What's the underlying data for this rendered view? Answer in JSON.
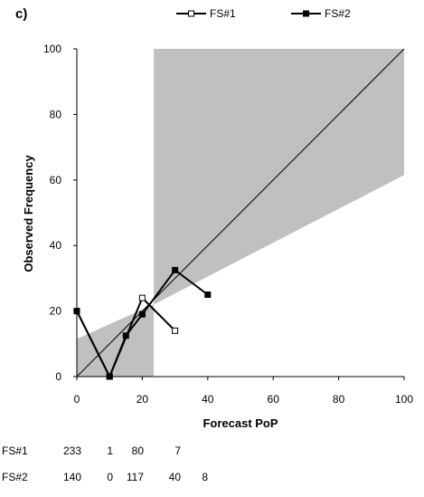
{
  "panel_label": "c)",
  "chart_data": {
    "type": "line",
    "title": "",
    "xlabel": "Forecast PoP",
    "ylabel": "Observed Frequency",
    "xlim": [
      0,
      100
    ],
    "ylim": [
      0,
      100
    ],
    "x_ticks": [
      "0",
      "20",
      "40",
      "60",
      "80",
      "100"
    ],
    "y_ticks": [
      "0",
      "20",
      "40",
      "60",
      "80",
      "100"
    ],
    "grid": false,
    "legend_position": "top",
    "diagonal": {
      "x": [
        0,
        100
      ],
      "y": [
        0,
        100
      ]
    },
    "shaded_region": {
      "x": [
        0,
        10,
        23.5,
        23.5,
        100,
        100,
        23.5,
        23.5,
        0
      ],
      "y": [
        11.5,
        16,
        22,
        100,
        100,
        61.5,
        22,
        0,
        0
      ]
    },
    "series": [
      {
        "name": "FS#1",
        "marker": "open-square",
        "x": [
          0,
          10,
          20,
          30
        ],
        "y": [
          20,
          0,
          24,
          14
        ]
      },
      {
        "name": "FS#2",
        "marker": "filled-square",
        "x": [
          0,
          10,
          15,
          20,
          30,
          40
        ],
        "y": [
          20,
          0,
          12.5,
          19,
          32.5,
          25
        ]
      }
    ],
    "counts": [
      {
        "label": "FS#1",
        "values": [
          "233",
          "1",
          "80",
          "7"
        ]
      },
      {
        "label": "FS#2",
        "values": [
          "140",
          "0",
          "117",
          "40",
          "8"
        ]
      }
    ]
  }
}
